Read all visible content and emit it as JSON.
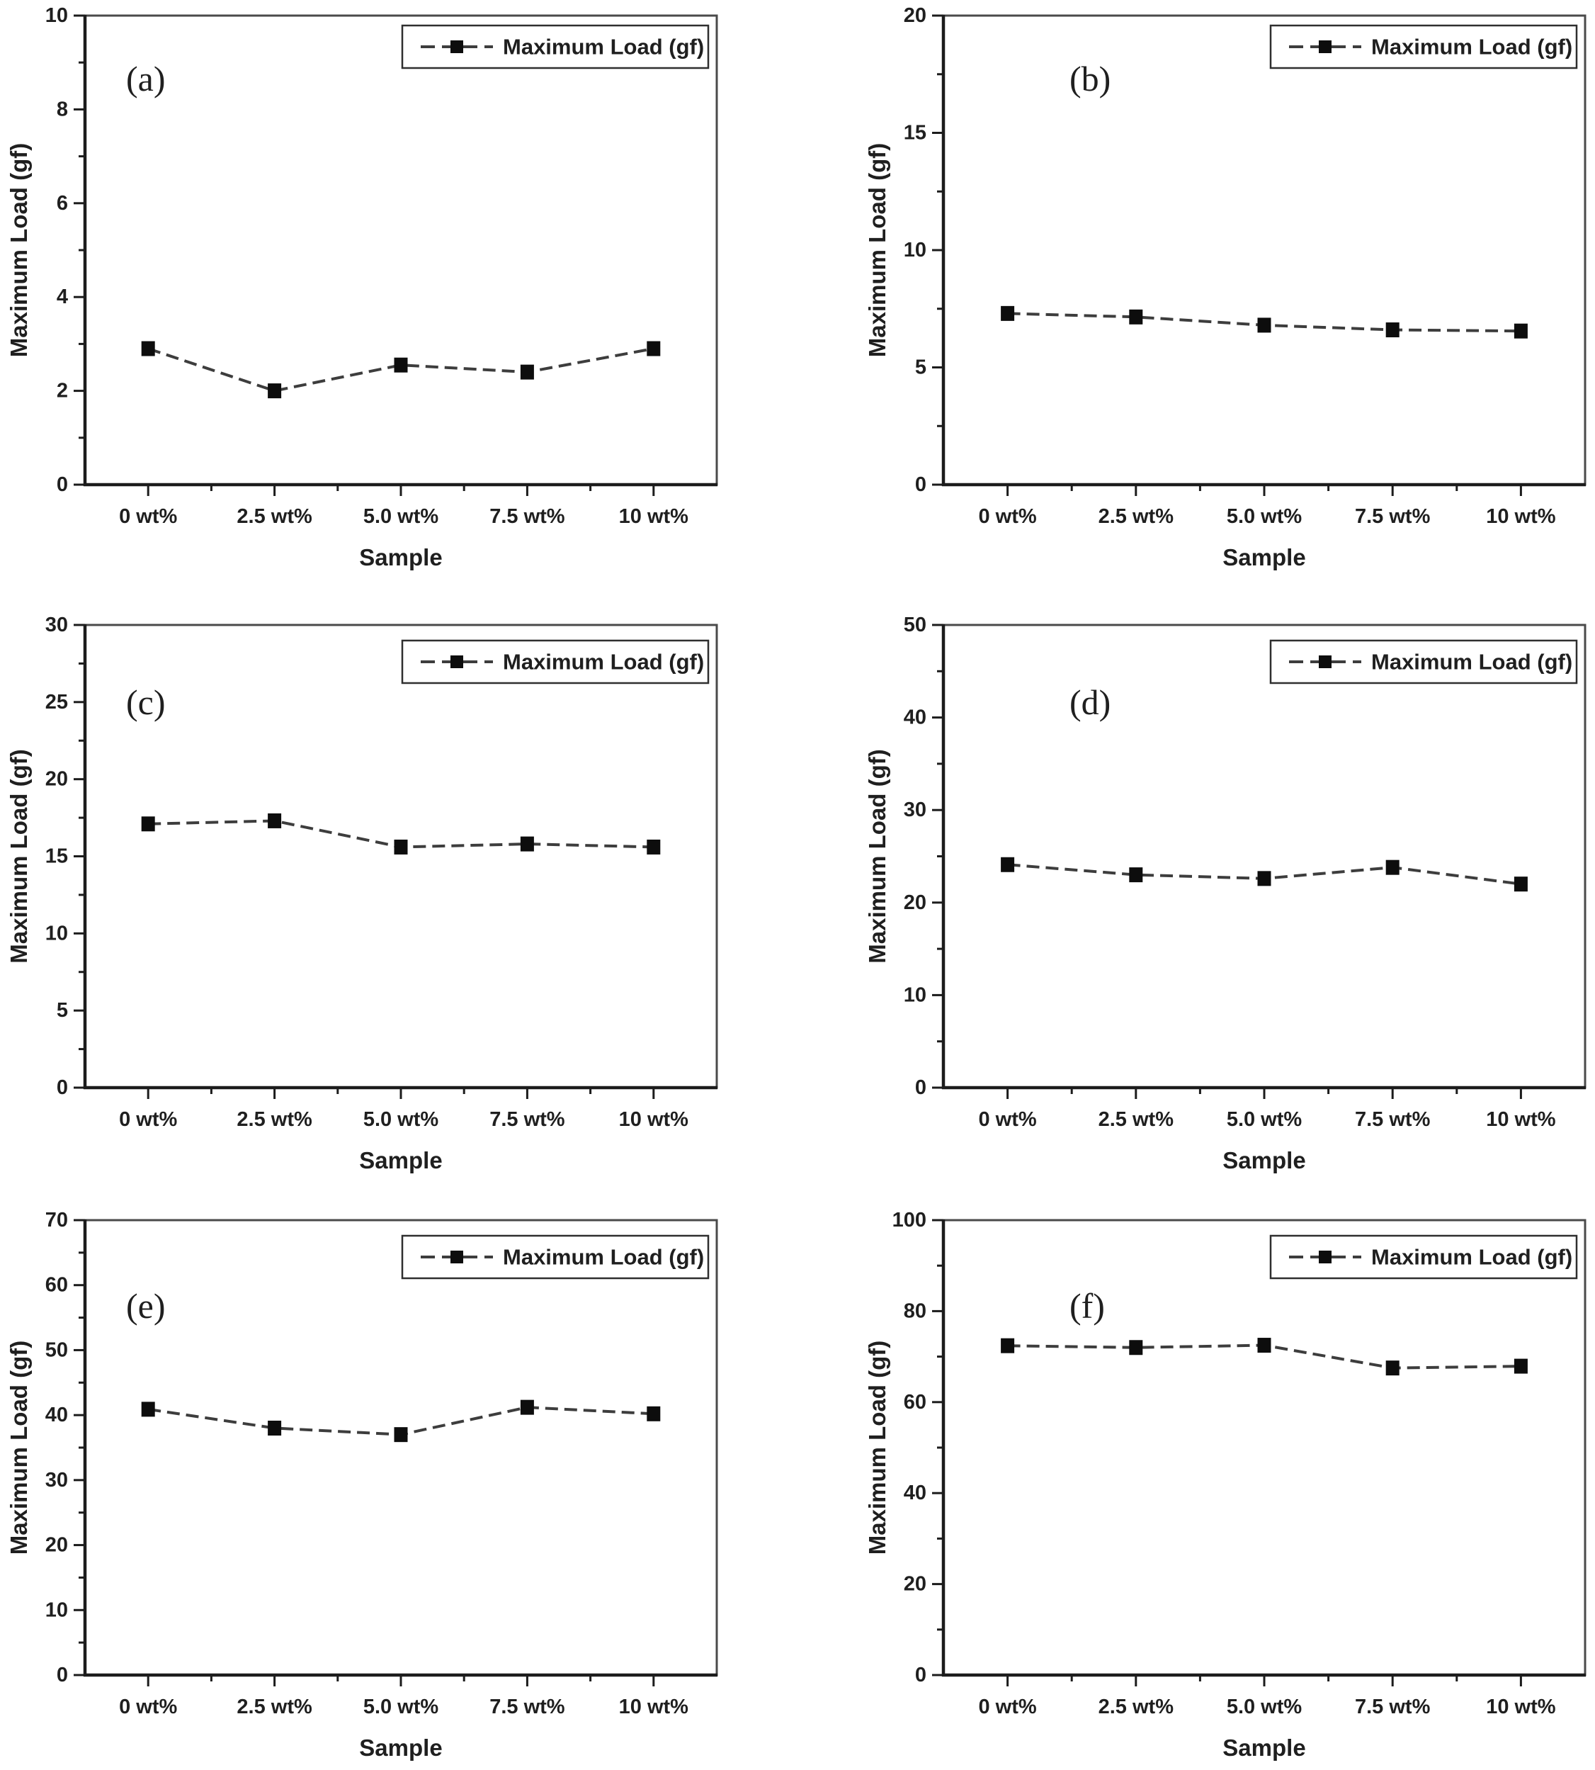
{
  "figure": {
    "background": "#ffffff",
    "line_style": "dashed",
    "marker_shape": "filled-square",
    "colors": {
      "line": "#3d3d3d",
      "marker": "#0d0d0d",
      "axis": "#1c1c1c",
      "frame": "#4a4a4a",
      "text": "#1f1f1f",
      "legend_border": "#2f2f2f",
      "background": "#ffffff"
    }
  },
  "chart_data": [
    {
      "type": "line",
      "panel_label": "(a)",
      "title": "",
      "xlabel": "Sample",
      "ylabel": "Maximum Load (gf)",
      "legend": {
        "position": "top-right",
        "entries": [
          "Maximum Load (gf)"
        ]
      },
      "categories": [
        "0 wt%",
        "2.5 wt%",
        "5.0 wt%",
        "7.5 wt%",
        "10 wt%"
      ],
      "series": [
        {
          "name": "Maximum Load (gf)",
          "values": [
            2.9,
            2.0,
            2.55,
            2.4,
            2.9
          ]
        }
      ],
      "ylim": [
        0,
        10
      ],
      "ytick_step": 2,
      "yminor_step": 1,
      "grid": false
    },
    {
      "type": "line",
      "panel_label": "(b)",
      "title": "",
      "xlabel": "Sample",
      "ylabel": "Maximum Load (gf)",
      "legend": {
        "position": "top-right",
        "entries": [
          "Maximum Load (gf)"
        ]
      },
      "categories": [
        "0 wt%",
        "2.5 wt%",
        "5.0 wt%",
        "7.5 wt%",
        "10 wt%"
      ],
      "series": [
        {
          "name": "Maximum Load (gf)",
          "values": [
            7.3,
            7.15,
            6.8,
            6.6,
            6.55
          ]
        }
      ],
      "ylim": [
        0,
        20
      ],
      "ytick_step": 5,
      "yminor_step": 2.5,
      "grid": false
    },
    {
      "type": "line",
      "panel_label": "(c)",
      "title": "",
      "xlabel": "Sample",
      "ylabel": "Maximum Load (gf)",
      "legend": {
        "position": "top-right",
        "entries": [
          "Maximum Load (gf)"
        ]
      },
      "categories": [
        "0 wt%",
        "2.5 wt%",
        "5.0 wt%",
        "7.5 wt%",
        "10 wt%"
      ],
      "series": [
        {
          "name": "Maximum Load (gf)",
          "values": [
            17.1,
            17.3,
            15.6,
            15.8,
            15.6
          ]
        }
      ],
      "ylim": [
        0,
        30
      ],
      "ytick_step": 5,
      "yminor_step": 2.5,
      "grid": false
    },
    {
      "type": "line",
      "panel_label": "(d)",
      "title": "",
      "xlabel": "Sample",
      "ylabel": "Maximum Load (gf)",
      "legend": {
        "position": "top-right",
        "entries": [
          "Maximum Load (gf)"
        ]
      },
      "categories": [
        "0 wt%",
        "2.5 wt%",
        "5.0 wt%",
        "7.5 wt%",
        "10 wt%"
      ],
      "series": [
        {
          "name": "Maximum Load (gf)",
          "values": [
            24.1,
            23.0,
            22.6,
            23.8,
            22.0
          ]
        }
      ],
      "ylim": [
        0,
        50
      ],
      "ytick_step": 10,
      "yminor_step": 5,
      "grid": false
    },
    {
      "type": "line",
      "panel_label": "(e)",
      "title": "",
      "xlabel": "Sample",
      "ylabel": "Maximum Load (gf)",
      "legend": {
        "position": "top-right",
        "entries": [
          "Maximum Load (gf)"
        ]
      },
      "categories": [
        "0 wt%",
        "2.5 wt%",
        "5.0 wt%",
        "7.5 wt%",
        "10 wt%"
      ],
      "series": [
        {
          "name": "Maximum Load (gf)",
          "values": [
            40.9,
            38.0,
            37.0,
            41.2,
            40.2
          ]
        }
      ],
      "ylim": [
        0,
        70
      ],
      "ytick_step": 10,
      "yminor_step": 5,
      "grid": false
    },
    {
      "type": "line",
      "panel_label": "(f)",
      "title": "",
      "xlabel": "Sample",
      "ylabel": "Maximum Load (gf)",
      "legend": {
        "position": "top-right",
        "entries": [
          "Maximum Load (gf)"
        ]
      },
      "categories": [
        "0 wt%",
        "2.5 wt%",
        "5.0 wt%",
        "7.5 wt%",
        "10 wt%"
      ],
      "series": [
        {
          "name": "Maximum Load (gf)",
          "values": [
            72.4,
            72.0,
            72.5,
            67.5,
            67.9
          ]
        }
      ],
      "ylim": [
        0,
        100
      ],
      "ytick_step": 20,
      "yminor_step": 10,
      "grid": false
    }
  ]
}
